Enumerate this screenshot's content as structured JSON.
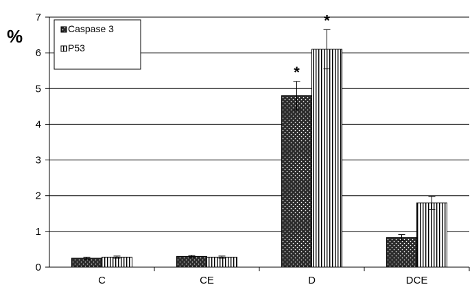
{
  "chart_data": {
    "type": "bar",
    "ylabel": "%",
    "xlabel": "",
    "ylim": [
      0,
      7
    ],
    "yticks": [
      "0",
      "1",
      "2",
      "3",
      "4",
      "5",
      "6",
      "7"
    ],
    "grid": true,
    "legend_position": "top-left",
    "categories": [
      "C",
      "CE",
      "D",
      "DCE"
    ],
    "series": [
      {
        "name": "Caspase 3",
        "pattern": "dots",
        "values": [
          0.25,
          0.3,
          4.8,
          0.83
        ],
        "errors": [
          0.03,
          0.03,
          0.4,
          0.08
        ]
      },
      {
        "name": "P53",
        "pattern": "vertical-stripes",
        "values": [
          0.28,
          0.28,
          6.1,
          1.8
        ],
        "errors": [
          0.03,
          0.03,
          0.55,
          0.18
        ]
      }
    ],
    "annotations": [
      {
        "text": "*",
        "category": "D",
        "series": "Caspase 3"
      },
      {
        "text": "*",
        "category": "D",
        "series": "P53"
      }
    ]
  }
}
